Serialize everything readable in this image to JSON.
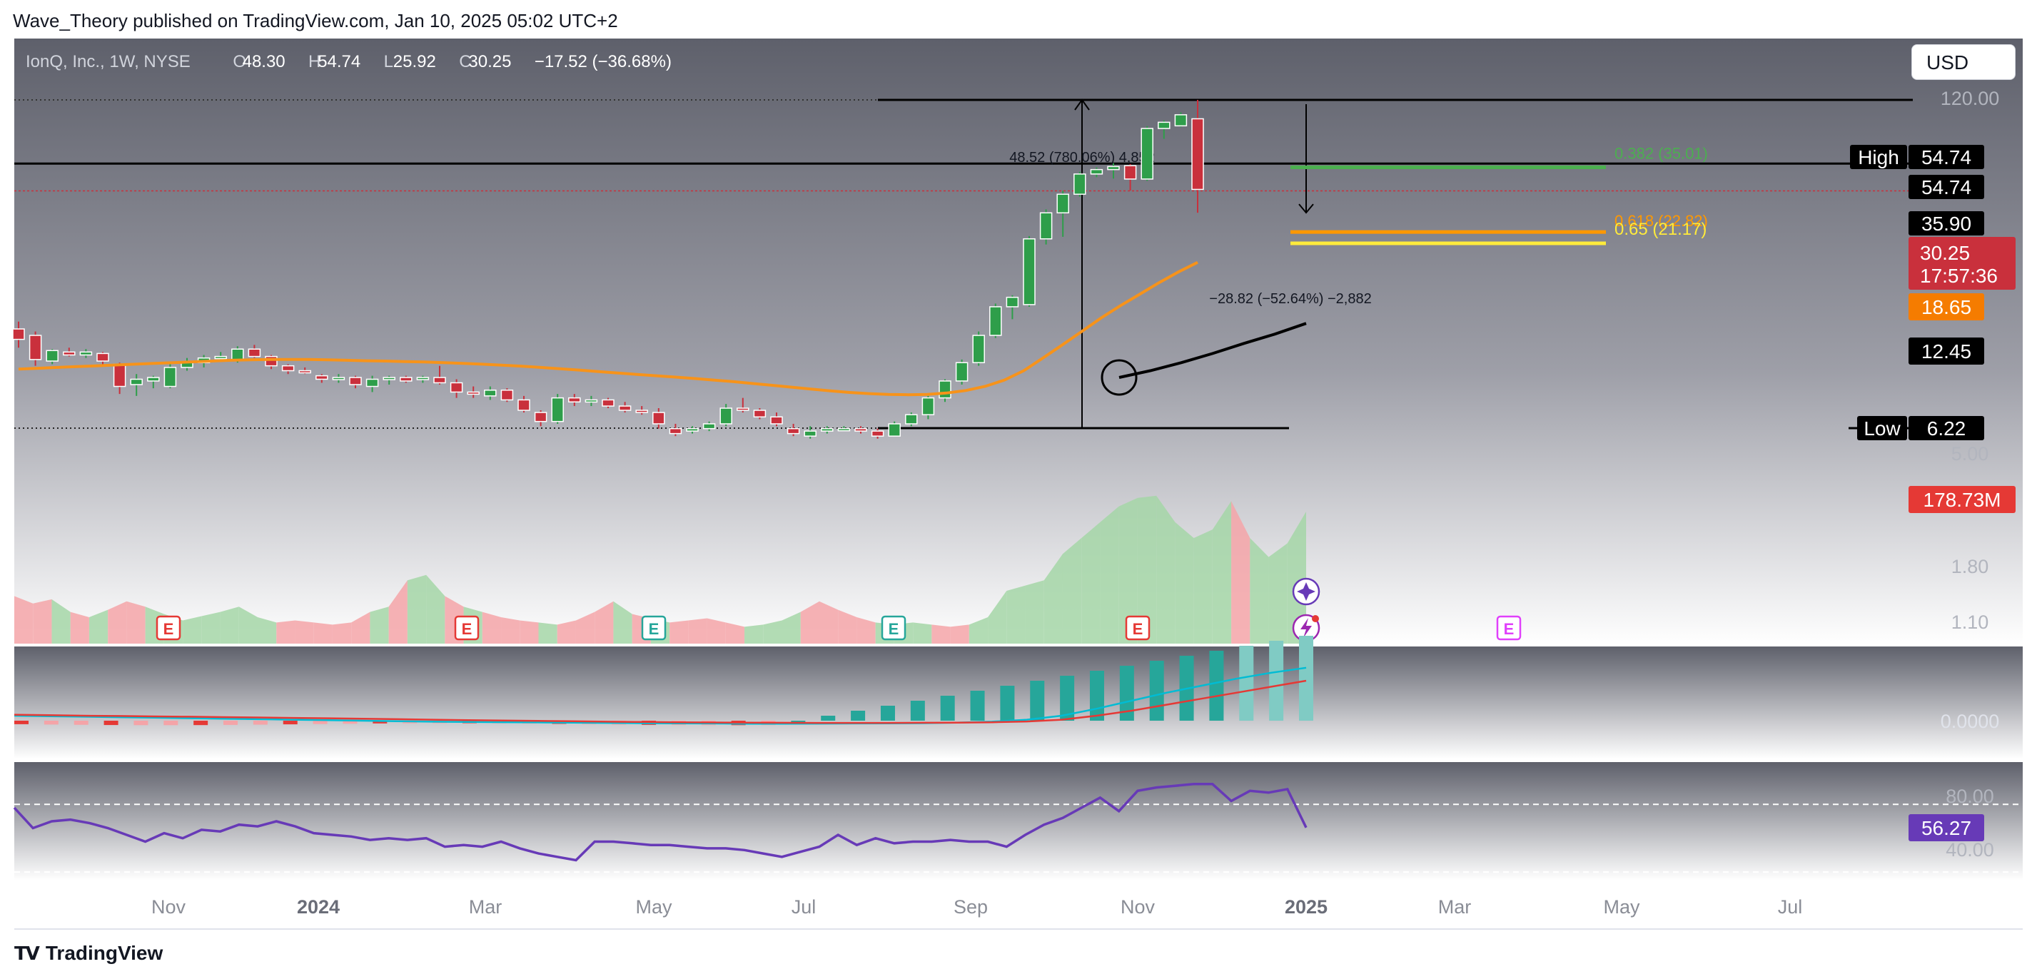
{
  "publisher_line": "Wave_Theory published on TradingView.com, Jan 10, 2025 05:02 UTC+2",
  "brand": "TradingView",
  "currency_button": "USD",
  "legend": {
    "symbol": "IonQ, Inc., 1W, NYSE",
    "o_label": "O",
    "o": "48.30",
    "h_label": "H",
    "h": "54.74",
    "l_label": "L",
    "l": "25.92",
    "c_label": "C",
    "c": "30.25",
    "change": "−17.52 (−36.68%)"
  },
  "colors": {
    "up": "#26a69a",
    "down": "#ef5350",
    "candle_up": "#2e9e4a",
    "candle_down": "#c9303c",
    "ema_orange": "#f7931a",
    "sma_black": "#000000",
    "fib_green": "#4caf50",
    "fib_orange": "#ff9800",
    "fib_yellow": "#ffeb3b",
    "macd": "#00bcd4",
    "signal": "#e53935",
    "rsi": "#673ab7"
  },
  "chart_data": [
    {
      "type": "candlestick",
      "panel": "price",
      "scale": "log",
      "timeframe": "1W",
      "x_tick_labels": [
        "Nov",
        "2024",
        "Mar",
        "May",
        "Jul",
        "Sep",
        "Nov",
        "2025",
        "Mar",
        "May",
        "Jul"
      ],
      "y_tick_labels": [
        "120.00",
        "5.00",
        "1.80",
        "1.10"
      ],
      "ylim": [
        0.9,
        140
      ],
      "candles": [
        {
          "o": 12.0,
          "h": 12.6,
          "l": 10.6,
          "c": 11.2
        },
        {
          "o": 11.5,
          "h": 11.8,
          "l": 9.4,
          "c": 9.8
        },
        {
          "o": 9.7,
          "h": 10.5,
          "l": 9.5,
          "c": 10.4
        },
        {
          "o": 10.3,
          "h": 10.6,
          "l": 10.0,
          "c": 10.1
        },
        {
          "o": 10.1,
          "h": 10.5,
          "l": 9.9,
          "c": 10.3
        },
        {
          "o": 10.2,
          "h": 10.3,
          "l": 9.4,
          "c": 9.7
        },
        {
          "o": 9.5,
          "h": 9.6,
          "l": 7.8,
          "c": 8.2
        },
        {
          "o": 8.3,
          "h": 8.9,
          "l": 7.7,
          "c": 8.6
        },
        {
          "o": 8.5,
          "h": 8.8,
          "l": 8.1,
          "c": 8.7
        },
        {
          "o": 8.2,
          "h": 9.5,
          "l": 8.1,
          "c": 9.3
        },
        {
          "o": 9.3,
          "h": 9.9,
          "l": 9.1,
          "c": 9.6
        },
        {
          "o": 9.6,
          "h": 10.1,
          "l": 9.3,
          "c": 9.9
        },
        {
          "o": 9.9,
          "h": 10.3,
          "l": 9.7,
          "c": 10.0
        },
        {
          "o": 9.8,
          "h": 10.7,
          "l": 9.6,
          "c": 10.5
        },
        {
          "o": 10.5,
          "h": 10.8,
          "l": 9.9,
          "c": 10.0
        },
        {
          "o": 10.0,
          "h": 10.1,
          "l": 9.2,
          "c": 9.4
        },
        {
          "o": 9.4,
          "h": 9.5,
          "l": 8.9,
          "c": 9.1
        },
        {
          "o": 9.1,
          "h": 9.3,
          "l": 8.9,
          "c": 9.0
        },
        {
          "o": 8.8,
          "h": 8.9,
          "l": 8.4,
          "c": 8.6
        },
        {
          "o": 8.6,
          "h": 8.9,
          "l": 8.4,
          "c": 8.7
        },
        {
          "o": 8.7,
          "h": 8.8,
          "l": 8.1,
          "c": 8.3
        },
        {
          "o": 8.2,
          "h": 8.8,
          "l": 7.9,
          "c": 8.6
        },
        {
          "o": 8.6,
          "h": 8.8,
          "l": 8.3,
          "c": 8.7
        },
        {
          "o": 8.7,
          "h": 8.8,
          "l": 8.4,
          "c": 8.5
        },
        {
          "o": 8.6,
          "h": 8.8,
          "l": 8.4,
          "c": 8.7
        },
        {
          "o": 8.7,
          "h": 9.4,
          "l": 8.3,
          "c": 8.4
        },
        {
          "o": 8.4,
          "h": 8.6,
          "l": 7.6,
          "c": 7.9
        },
        {
          "o": 7.9,
          "h": 8.2,
          "l": 7.6,
          "c": 7.8
        },
        {
          "o": 7.7,
          "h": 8.2,
          "l": 7.5,
          "c": 8.0
        },
        {
          "o": 8.0,
          "h": 8.1,
          "l": 7.4,
          "c": 7.5
        },
        {
          "o": 7.5,
          "h": 7.7,
          "l": 6.9,
          "c": 7.0
        },
        {
          "o": 6.9,
          "h": 7.0,
          "l": 6.3,
          "c": 6.5
        },
        {
          "o": 6.5,
          "h": 7.8,
          "l": 6.4,
          "c": 7.6
        },
        {
          "o": 7.6,
          "h": 7.8,
          "l": 7.2,
          "c": 7.4
        },
        {
          "o": 7.4,
          "h": 7.7,
          "l": 7.2,
          "c": 7.5
        },
        {
          "o": 7.5,
          "h": 7.6,
          "l": 7.1,
          "c": 7.2
        },
        {
          "o": 7.2,
          "h": 7.4,
          "l": 6.9,
          "c": 7.0
        },
        {
          "o": 7.0,
          "h": 7.2,
          "l": 6.8,
          "c": 6.9
        },
        {
          "o": 6.9,
          "h": 7.1,
          "l": 6.2,
          "c": 6.4
        },
        {
          "o": 6.2,
          "h": 6.4,
          "l": 5.9,
          "c": 6.0
        },
        {
          "o": 6.1,
          "h": 6.3,
          "l": 6.0,
          "c": 6.2
        },
        {
          "o": 6.2,
          "h": 6.5,
          "l": 6.1,
          "c": 6.4
        },
        {
          "o": 6.4,
          "h": 7.3,
          "l": 6.3,
          "c": 7.1
        },
        {
          "o": 7.1,
          "h": 7.6,
          "l": 6.9,
          "c": 7.0
        },
        {
          "o": 7.0,
          "h": 7.1,
          "l": 6.6,
          "c": 6.7
        },
        {
          "o": 6.7,
          "h": 6.9,
          "l": 6.3,
          "c": 6.4
        },
        {
          "o": 6.2,
          "h": 6.4,
          "l": 5.9,
          "c": 6.0
        },
        {
          "o": 5.9,
          "h": 6.3,
          "l": 5.8,
          "c": 6.1
        },
        {
          "o": 6.1,
          "h": 6.3,
          "l": 6.0,
          "c": 6.2
        },
        {
          "o": 6.2,
          "h": 6.3,
          "l": 6.1,
          "c": 6.2
        },
        {
          "o": 6.2,
          "h": 6.3,
          "l": 6.0,
          "c": 6.1
        },
        {
          "o": 6.1,
          "h": 6.2,
          "l": 5.8,
          "c": 5.9
        },
        {
          "o": 5.9,
          "h": 6.5,
          "l": 5.9,
          "c": 6.4
        },
        {
          "o": 6.4,
          "h": 6.9,
          "l": 6.3,
          "c": 6.8
        },
        {
          "o": 6.8,
          "h": 7.7,
          "l": 6.6,
          "c": 7.6
        },
        {
          "o": 7.6,
          "h": 8.6,
          "l": 7.4,
          "c": 8.5
        },
        {
          "o": 8.5,
          "h": 9.8,
          "l": 8.3,
          "c": 9.6
        },
        {
          "o": 9.6,
          "h": 11.8,
          "l": 9.4,
          "c": 11.5
        },
        {
          "o": 11.5,
          "h": 14.2,
          "l": 11.3,
          "c": 13.9
        },
        {
          "o": 13.9,
          "h": 15.0,
          "l": 12.8,
          "c": 14.8
        },
        {
          "o": 14.1,
          "h": 22.2,
          "l": 13.9,
          "c": 21.8
        },
        {
          "o": 21.8,
          "h": 26.5,
          "l": 21.0,
          "c": 25.9
        },
        {
          "o": 25.9,
          "h": 30.0,
          "l": 22.1,
          "c": 29.3
        },
        {
          "o": 29.3,
          "h": 34.0,
          "l": 28.8,
          "c": 33.5
        },
        {
          "o": 33.5,
          "h": 35.0,
          "l": 32.8,
          "c": 34.5
        },
        {
          "o": 34.5,
          "h": 36.0,
          "l": 32.5,
          "c": 35.2
        },
        {
          "o": 35.4,
          "h": 35.8,
          "l": 30.0,
          "c": 32.4
        },
        {
          "o": 32.4,
          "h": 46.0,
          "l": 32.0,
          "c": 45.3
        },
        {
          "o": 45.3,
          "h": 47.8,
          "l": 42.3,
          "c": 47.2
        },
        {
          "o": 46.1,
          "h": 50.4,
          "l": 45.7,
          "c": 49.6
        },
        {
          "o": 48.3,
          "h": 54.74,
          "l": 25.92,
          "c": 30.25
        }
      ],
      "ema_points": [
        9.2,
        9.25,
        9.3,
        9.35,
        9.4,
        9.45,
        9.5,
        9.55,
        9.6,
        9.65,
        9.7,
        9.75,
        9.78,
        9.8,
        9.8,
        9.8,
        9.78,
        9.75,
        9.72,
        9.7,
        9.67,
        9.64,
        9.6,
        9.55,
        9.5,
        9.44,
        9.38,
        9.3,
        9.22,
        9.14,
        9.05,
        8.96,
        8.88,
        8.8,
        8.72,
        8.64,
        8.55,
        8.46,
        8.36,
        8.26,
        8.16,
        8.06,
        7.96,
        7.88,
        7.82,
        7.78,
        7.76,
        7.78,
        7.85,
        7.98,
        8.2,
        8.55,
        9.1,
        9.9,
        10.8,
        11.8,
        12.9,
        14.0,
        15.1,
        16.3,
        17.5,
        18.65
      ],
      "sma_points": [
        8.7,
        9.1,
        9.6,
        10.2,
        10.9,
        11.6,
        12.45
      ],
      "price_badges": {
        "high_label": "High",
        "high": "54.74",
        "high_line": "54.74",
        "level_1": "35.90",
        "last_price": "30.25",
        "countdown": "17:57:36",
        "ema_value": "18.65",
        "sma_value": "12.45",
        "low_label": "Low",
        "low": "6.22",
        "volume": "178.73M"
      },
      "annotations": {
        "range_up": "48.52 (780.06%) 4,852",
        "range_down": "−28.82 (−52.64%) −2,882",
        "fib_0382": "0.382 (35.01)",
        "fib_0618": "0.618 (22.82)",
        "fib_065": "0.65 (21.17)",
        "event_icon": "E"
      }
    },
    {
      "type": "area",
      "panel": "volume",
      "name": "Volume",
      "values_relative": [
        0.45,
        0.38,
        0.42,
        0.3,
        0.25,
        0.32,
        0.4,
        0.35,
        0.28,
        0.22,
        0.26,
        0.3,
        0.35,
        0.25,
        0.2,
        0.22,
        0.2,
        0.18,
        0.2,
        0.3,
        0.35,
        0.6,
        0.65,
        0.45,
        0.35,
        0.3,
        0.25,
        0.22,
        0.2,
        0.18,
        0.22,
        0.3,
        0.4,
        0.28,
        0.24,
        0.2,
        0.22,
        0.24,
        0.2,
        0.16,
        0.18,
        0.22,
        0.3,
        0.4,
        0.32,
        0.25,
        0.2,
        0.18,
        0.2,
        0.18,
        0.16,
        0.18,
        0.25,
        0.5,
        0.55,
        0.6,
        0.85,
        1.0,
        1.15,
        1.3,
        1.38,
        1.4,
        1.15,
        1.0,
        1.08,
        1.35,
        1.0,
        0.82,
        0.95,
        1.25
      ]
    },
    {
      "type": "line",
      "panel": "macd",
      "series": [
        {
          "name": "",
          "values": [
            0.5,
            0.45,
            0.4,
            0.35,
            0.3,
            0.25,
            0.2,
            0.15,
            0.1,
            0.05,
            0.0,
            -0.05,
            -0.1,
            -0.12,
            -0.15,
            -0.17,
            -0.2,
            -0.22,
            -0.25,
            -0.27,
            -0.28,
            -0.3,
            -0.3,
            -0.29,
            -0.28,
            -0.27,
            -0.25,
            -0.2,
            -0.1,
            0.1,
            0.5,
            1.2,
            2.0,
            2.8,
            3.5,
            4.2,
            4.8,
            5.3
          ]
        },
        {
          "name": "",
          "values": [
            0.6,
            0.55,
            0.5,
            0.47,
            0.43,
            0.4,
            0.36,
            0.32,
            0.28,
            0.24,
            0.2,
            0.15,
            0.1,
            0.06,
            0.02,
            -0.02,
            -0.06,
            -0.1,
            -0.13,
            -0.16,
            -0.18,
            -0.2,
            -0.21,
            -0.22,
            -0.22,
            -0.22,
            -0.21,
            -0.2,
            -0.16,
            -0.08,
            0.1,
            0.5,
            1.0,
            1.6,
            2.2,
            2.8,
            3.4,
            4.0
          ]
        }
      ],
      "y_tick_labels": [
        "0.0000"
      ]
    },
    {
      "type": "line",
      "panel": "rsi",
      "name": "RSI",
      "value_badge": "56.27",
      "y_tick_labels": [
        "80.00",
        "40.00"
      ],
      "ylim": [
        25,
        95
      ],
      "values": [
        68,
        56,
        60,
        61,
        59,
        56,
        52,
        48,
        53,
        50,
        55,
        54,
        58,
        57,
        60,
        57,
        53,
        52,
        51,
        49,
        50,
        49,
        50,
        45,
        46,
        45,
        48,
        44,
        41,
        39,
        37,
        48,
        48,
        47,
        46,
        46,
        45,
        44,
        44,
        43,
        41,
        39,
        42,
        45,
        52,
        46,
        50,
        47,
        48,
        48,
        49,
        48,
        48,
        45,
        52,
        58,
        62,
        68,
        74,
        66,
        78,
        80,
        81,
        82,
        82,
        72,
        78,
        77,
        79,
        56.27
      ]
    }
  ]
}
